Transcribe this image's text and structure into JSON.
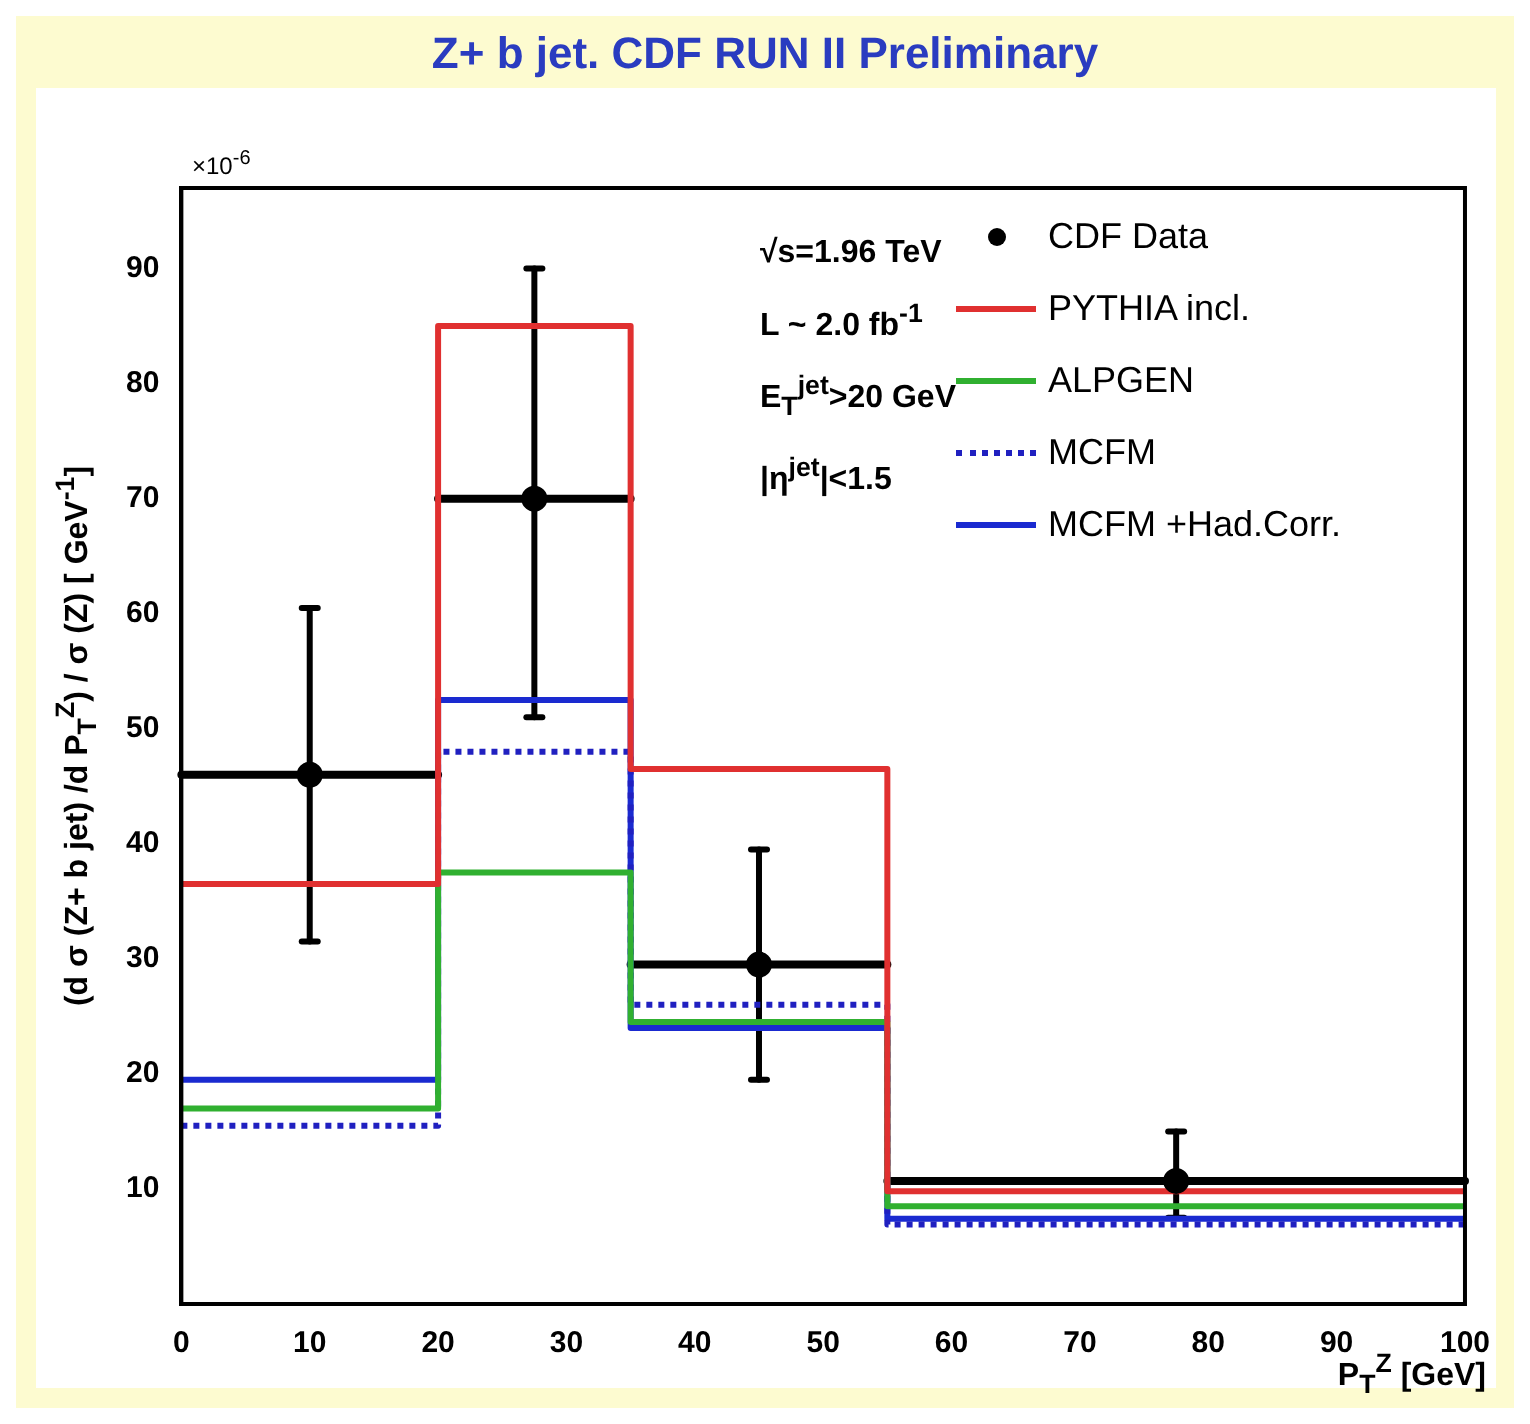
{
  "chart_data": {
    "type": "step",
    "title": "Z+ b jet. CDF RUN II Preliminary",
    "xlabel": "P$_{T}$$^{Z}$  [GeV]",
    "ylabel": "(d σ (Z+ b jet) /d P$_{T}$$^{Z}$) / σ (Z)   [ GeV$^{-1}$]",
    "annotations": [
      "×10$^{-6}$",
      "√s=1.96 TeV",
      "L ~ 2.0 fb$^{-1}$",
      "E$_{T}$$^{jet}$>20 GeV",
      "|η$^{jet}$|<1.5"
    ],
    "xlim": [
      0,
      100
    ],
    "xticks": [
      0,
      10,
      20,
      30,
      40,
      50,
      60,
      70,
      80,
      90,
      100
    ],
    "ylim": [
      0,
      97
    ],
    "yticks": [
      10,
      20,
      30,
      40,
      50,
      60,
      70,
      80,
      90
    ],
    "grid": false,
    "legend": "top right",
    "series": [
      {
        "name": "CDF Data",
        "type": "scatter",
        "color": "#000000",
        "marker": "circle",
        "x": [
          10,
          27.5,
          45,
          77.5
        ],
        "values": [
          46,
          70,
          29.5,
          10.7
        ],
        "errors": [
          [
            31.5,
            60.5
          ],
          [
            51,
            90
          ],
          [
            19.5,
            39.5
          ],
          [
            7.5,
            15
          ]
        ],
        "xerrors": [
          [
            0,
            20
          ],
          [
            20,
            35
          ],
          [
            35,
            55
          ],
          [
            55,
            100
          ]
        ]
      },
      {
        "name": "PYTHIA incl.",
        "color": "#e03030",
        "line_style": "solid",
        "x": [
          0,
          20,
          35,
          55,
          100
        ],
        "values": [
          36.5,
          85,
          46.5,
          9.8,
          9.8
        ]
      },
      {
        "name": "ALPGEN",
        "color": "#30b030",
        "line_style": "solid",
        "x": [
          0,
          20,
          35,
          55,
          100
        ],
        "values": [
          17,
          37.5,
          24.5,
          8.5,
          8.5
        ]
      },
      {
        "name": "MCFM",
        "color": "#2020c0",
        "line_style": "dotted",
        "x": [
          0,
          20,
          35,
          55,
          100
        ],
        "values": [
          15.5,
          48,
          26,
          6.9,
          6.9
        ]
      },
      {
        "name": "MCFM +Had.Corr.",
        "color": "#1a2ad0",
        "line_style": "solid",
        "x": [
          0,
          20,
          35,
          55,
          100
        ],
        "values": [
          19.5,
          52.5,
          24,
          7.4,
          7.4
        ]
      }
    ]
  }
}
